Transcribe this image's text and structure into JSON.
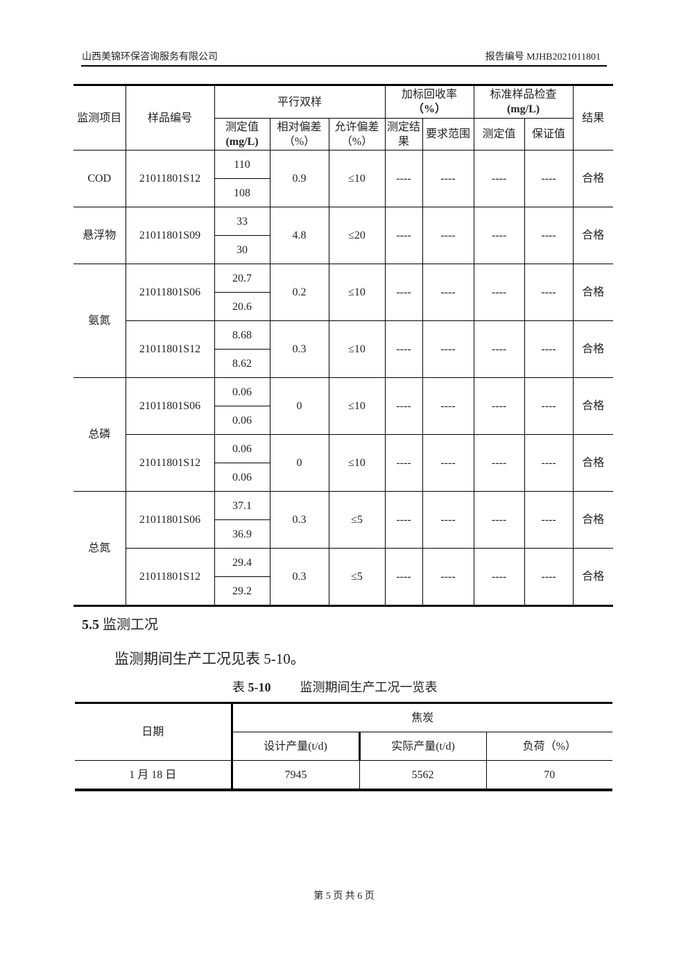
{
  "header": {
    "company": "山西美锦环保咨询服务有限公司",
    "report_no": "报告编号 MJHB2021011801"
  },
  "table1": {
    "headers": {
      "item": "监测项目",
      "sample_id": "样品编号",
      "parallel": "平行双样",
      "measured": "测定值",
      "measured_unit": "(mg/L)",
      "rel_dev": "相对偏差（%）",
      "allow_dev": "允许偏差（%）",
      "spike": "加标回收率",
      "spike_unit": "（%）",
      "spike_result": "测定结果",
      "spike_range": "要求范围",
      "std": "标准样品检查",
      "std_unit": "(mg/L)",
      "std_measured": "测定值",
      "std_guarantee": "保证值",
      "result": "结果"
    },
    "groups": [
      {
        "item": "COD",
        "samples": [
          {
            "id": "21011801S12",
            "values": [
              "110",
              "108"
            ],
            "rel_dev": "0.9",
            "allow": "≤10",
            "spike_result": "----",
            "spike_range": "----",
            "std_measured": "----",
            "std_guarantee": "----",
            "result": "合格"
          }
        ]
      },
      {
        "item": "悬浮物",
        "samples": [
          {
            "id": "21011801S09",
            "values": [
              "33",
              "30"
            ],
            "rel_dev": "4.8",
            "allow": "≤20",
            "spike_result": "----",
            "spike_range": "----",
            "std_measured": "----",
            "std_guarantee": "----",
            "result": "合格"
          }
        ]
      },
      {
        "item": "氨氮",
        "samples": [
          {
            "id": "21011801S06",
            "values": [
              "20.7",
              "20.6"
            ],
            "rel_dev": "0.2",
            "allow": "≤10",
            "spike_result": "----",
            "spike_range": "----",
            "std_measured": "----",
            "std_guarantee": "----",
            "result": "合格"
          },
          {
            "id": "21011801S12",
            "values": [
              "8.68",
              "8.62"
            ],
            "rel_dev": "0.3",
            "allow": "≤10",
            "spike_result": "----",
            "spike_range": "----",
            "std_measured": "----",
            "std_guarantee": "----",
            "result": "合格"
          }
        ]
      },
      {
        "item": "总磷",
        "samples": [
          {
            "id": "21011801S06",
            "values": [
              "0.06",
              "0.06"
            ],
            "rel_dev": "0",
            "allow": "≤10",
            "spike_result": "----",
            "spike_range": "----",
            "std_measured": "----",
            "std_guarantee": "----",
            "result": "合格"
          },
          {
            "id": "21011801S12",
            "values": [
              "0.06",
              "0.06"
            ],
            "rel_dev": "0",
            "allow": "≤10",
            "spike_result": "----",
            "spike_range": "----",
            "std_measured": "----",
            "std_guarantee": "----",
            "result": "合格"
          }
        ]
      },
      {
        "item": "总氮",
        "samples": [
          {
            "id": "21011801S06",
            "values": [
              "37.1",
              "36.9"
            ],
            "rel_dev": "0.3",
            "allow": "≤5",
            "spike_result": "----",
            "spike_range": "----",
            "std_measured": "----",
            "std_guarantee": "----",
            "result": "合格"
          },
          {
            "id": "21011801S12",
            "values": [
              "29.4",
              "29.2"
            ],
            "rel_dev": "0.3",
            "allow": "≤5",
            "spike_result": "----",
            "spike_range": "----",
            "std_measured": "----",
            "std_guarantee": "----",
            "result": "合格"
          }
        ]
      }
    ]
  },
  "section": {
    "number": "5.5",
    "title": "监测工况"
  },
  "paragraph": {
    "prefix": "监测期间生产工况见表 ",
    "ref": "5-10",
    "suffix": "。"
  },
  "caption": {
    "label": "表 ",
    "number": "5-10",
    "title": "监测期间生产工况一览表"
  },
  "table2": {
    "headers": {
      "date": "日期",
      "group": "焦炭",
      "design": "设计产量(t/d)",
      "actual": "实际产量(t/d)",
      "load": "负荷（%）"
    },
    "rows": [
      {
        "date": "1 月 18 日",
        "design": "7945",
        "actual": "5562",
        "load": "70"
      }
    ]
  },
  "footer": {
    "page": "第 5 页 共 6 页"
  }
}
